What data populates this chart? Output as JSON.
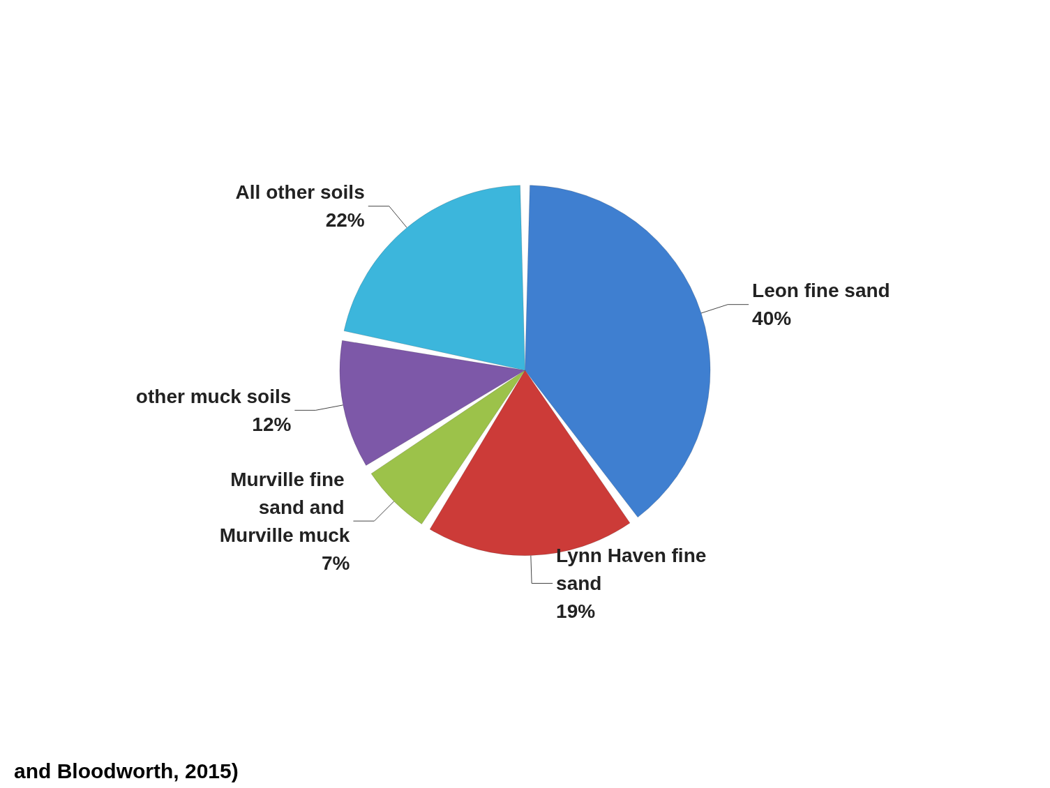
{
  "chart_data": {
    "type": "pie",
    "categories": [
      "Leon fine sand",
      "Lynn Haven fine sand",
      "Murville fine sand and Murville muck",
      "other muck soils",
      "All other soils"
    ],
    "values": [
      40,
      19,
      7,
      12,
      22
    ],
    "colors": [
      "#3f7fd0",
      "#cc3b38",
      "#9cc24a",
      "#7d58a8",
      "#3cb6dc"
    ],
    "value_labels": [
      "40%",
      "19%",
      "7%",
      "12%",
      "22%"
    ],
    "annotations": [
      "and Bloodworth, 2015)"
    ]
  }
}
